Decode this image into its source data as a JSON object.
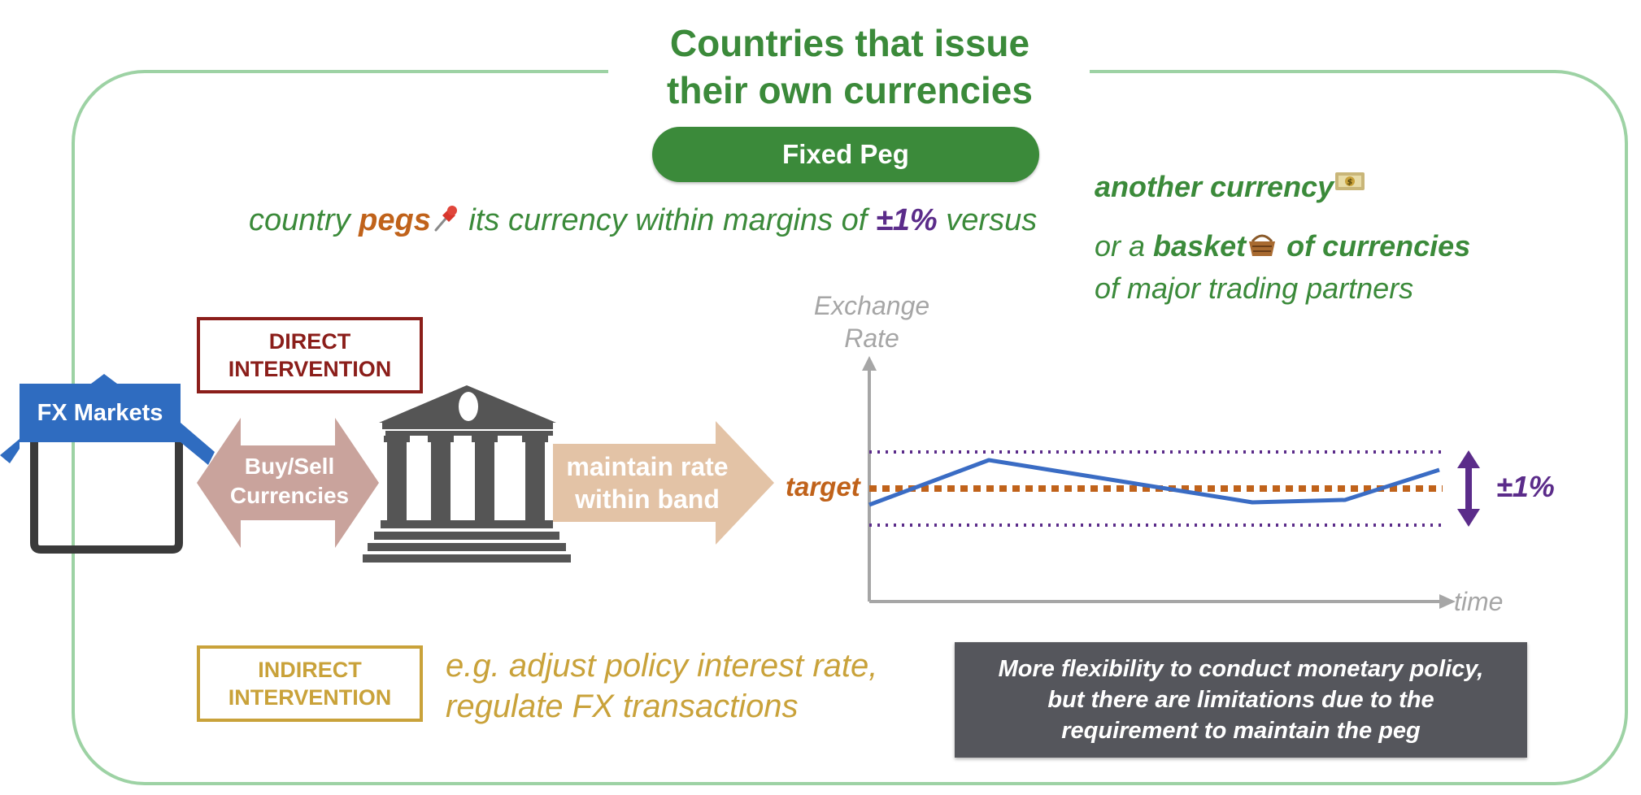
{
  "title": {
    "line1": "Countries that issue",
    "line2": "their own currencies"
  },
  "regime_label": "Fixed Peg",
  "definition": {
    "part1": "country ",
    "pegs": "pegs",
    "pegs_icon": "pushpin-icon",
    "part2": " its currency within margins of ",
    "margin": "±1%",
    "part3": " versus",
    "option1": "another currency",
    "option1_icon": "money-icon",
    "option2_prefix": "or a ",
    "option2_basket": "basket",
    "option2_icon": "basket-icon",
    "option2_suffix": " of currencies",
    "option2_line2": "of major trading partners"
  },
  "direct_intervention": {
    "line1": "DIRECT",
    "line2": "INTERVENTION"
  },
  "indirect_intervention": {
    "line1": "INDIRECT",
    "line2": "INTERVENTION"
  },
  "indirect_examples": {
    "line1": "e.g. adjust policy interest rate,",
    "line2": "regulate FX transactions"
  },
  "fx_markets_label": "FX Markets",
  "buy_sell": {
    "line1": "Buy/Sell",
    "line2": "Currencies"
  },
  "maintain": {
    "line1": "maintain rate",
    "line2": "within band"
  },
  "central_bank_icon": "bank-building-icon",
  "chart_labels": {
    "y_line1": "Exchange",
    "y_line2": "Rate",
    "x": "time",
    "target": "target",
    "band": "±1%"
  },
  "note": {
    "line1": "More flexibility to conduct monetary policy,",
    "line2": "but there are limitations due to  the",
    "line3": "requirement to maintain the peg"
  },
  "colors": {
    "green": "#3b8a3a",
    "frame": "#9dd2a4",
    "direct": "#8b1e1a",
    "indirect": "#c9a23a",
    "orange": "#c0621a",
    "purple": "#5b2c8a",
    "line": "#3a6cc4",
    "axis": "#a6a6a6",
    "fx_blue": "#2f6cc0",
    "note_bg": "#55565c"
  }
}
